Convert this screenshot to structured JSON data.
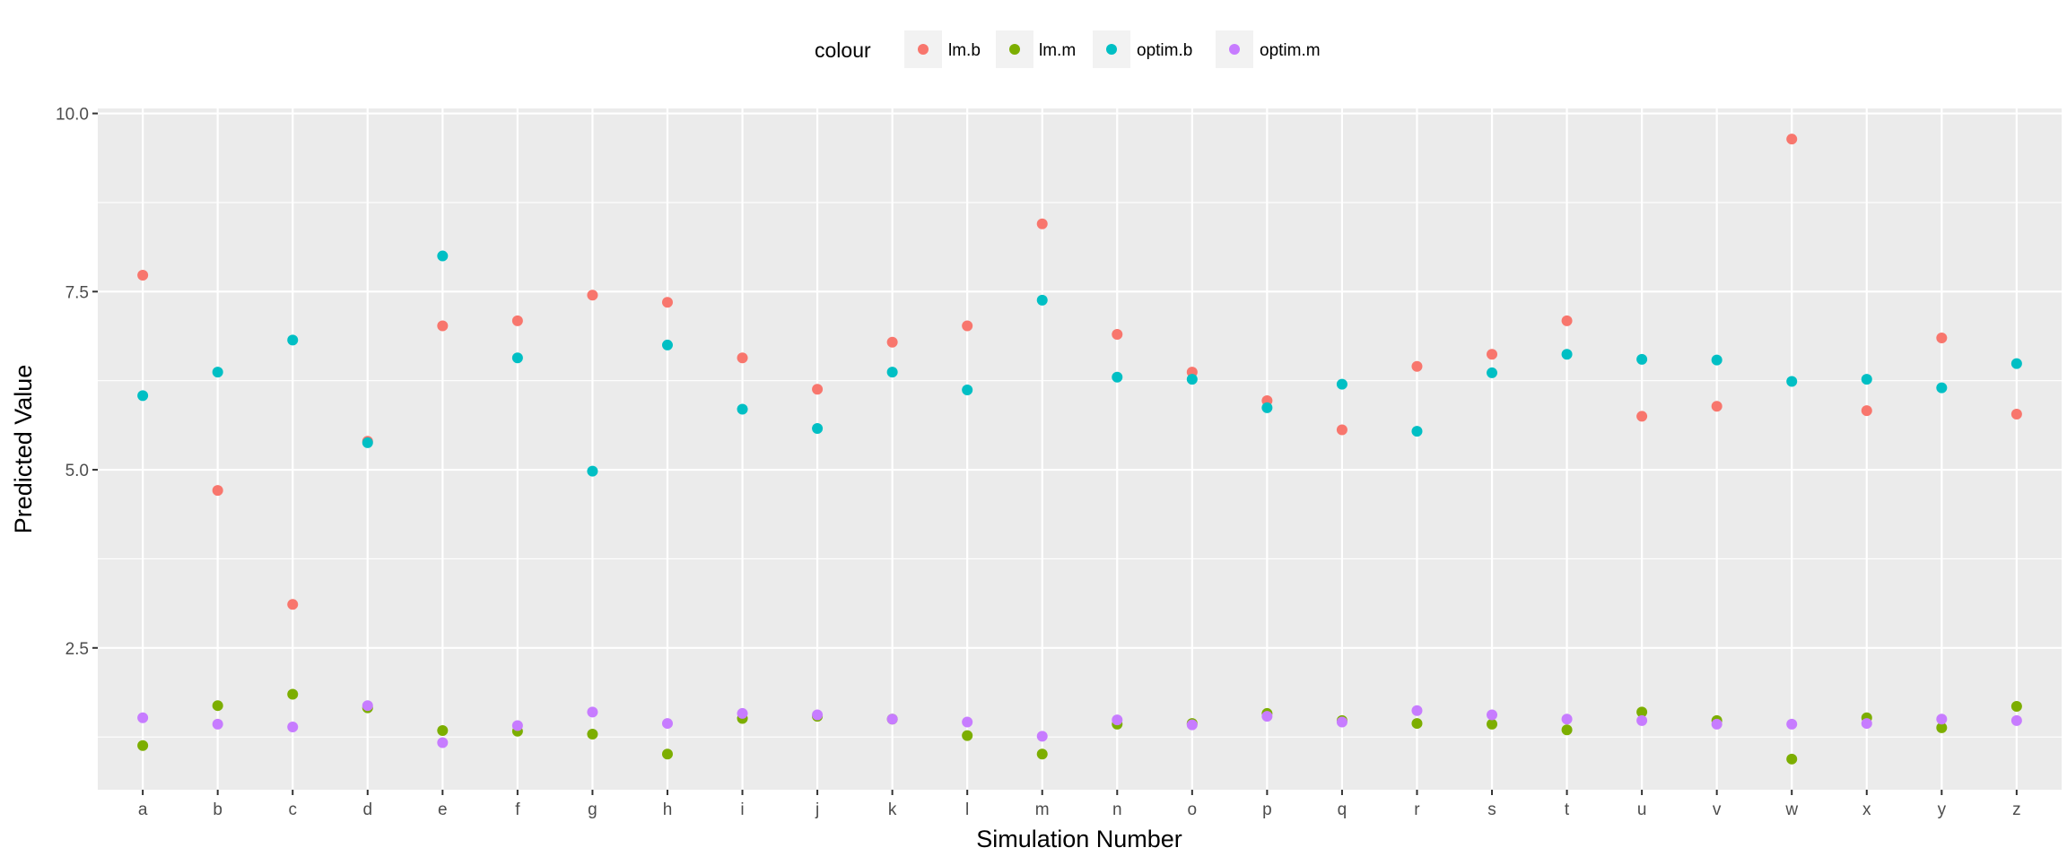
{
  "chart_data": {
    "type": "scatter",
    "title": "",
    "xlabel": "Simulation Number",
    "ylabel": "Predicted Value",
    "categories": [
      "a",
      "b",
      "c",
      "d",
      "e",
      "f",
      "g",
      "h",
      "i",
      "j",
      "k",
      "l",
      "m",
      "n",
      "o",
      "p",
      "q",
      "r",
      "s",
      "t",
      "u",
      "v",
      "w",
      "x",
      "y",
      "z"
    ],
    "ylim": [
      0.51,
      10.07
    ],
    "yticks": [
      2.5,
      5.0,
      7.5,
      10.0
    ],
    "ytick_labels": [
      "2.5",
      "5.0",
      "7.5",
      "10.0"
    ],
    "grid": true,
    "legend": {
      "title": "colour",
      "position": "top"
    },
    "series": [
      {
        "name": "lm.b",
        "color": "#F8766D",
        "values": [
          7.73,
          4.71,
          3.11,
          5.4,
          7.02,
          7.09,
          7.45,
          7.35,
          6.57,
          6.13,
          6.79,
          7.02,
          8.45,
          6.9,
          6.37,
          5.97,
          5.56,
          6.45,
          6.62,
          7.09,
          5.75,
          5.89,
          9.64,
          5.83,
          6.85,
          5.78
        ]
      },
      {
        "name": "lm.m",
        "color": "#7CAE00",
        "values": [
          1.13,
          1.69,
          1.85,
          1.66,
          1.34,
          1.33,
          1.29,
          1.01,
          1.51,
          1.54,
          1.5,
          1.27,
          1.01,
          1.43,
          1.44,
          1.58,
          1.48,
          1.44,
          1.43,
          1.35,
          1.6,
          1.48,
          0.94,
          1.52,
          1.38,
          1.68
        ]
      },
      {
        "name": "optim.b",
        "color": "#00BFC4",
        "values": [
          6.04,
          6.37,
          6.82,
          5.38,
          8.0,
          6.57,
          4.98,
          6.75,
          5.85,
          5.58,
          6.37,
          6.12,
          7.38,
          6.3,
          6.27,
          5.87,
          6.2,
          5.54,
          6.36,
          6.62,
          6.55,
          6.54,
          6.24,
          6.27,
          6.15,
          6.49
        ]
      },
      {
        "name": "optim.m",
        "color": "#C77CFF",
        "values": [
          1.52,
          1.43,
          1.39,
          1.69,
          1.17,
          1.41,
          1.6,
          1.44,
          1.58,
          1.56,
          1.5,
          1.46,
          1.26,
          1.49,
          1.42,
          1.54,
          1.46,
          1.62,
          1.56,
          1.5,
          1.48,
          1.43,
          1.43,
          1.44,
          1.5,
          1.48
        ]
      }
    ]
  }
}
